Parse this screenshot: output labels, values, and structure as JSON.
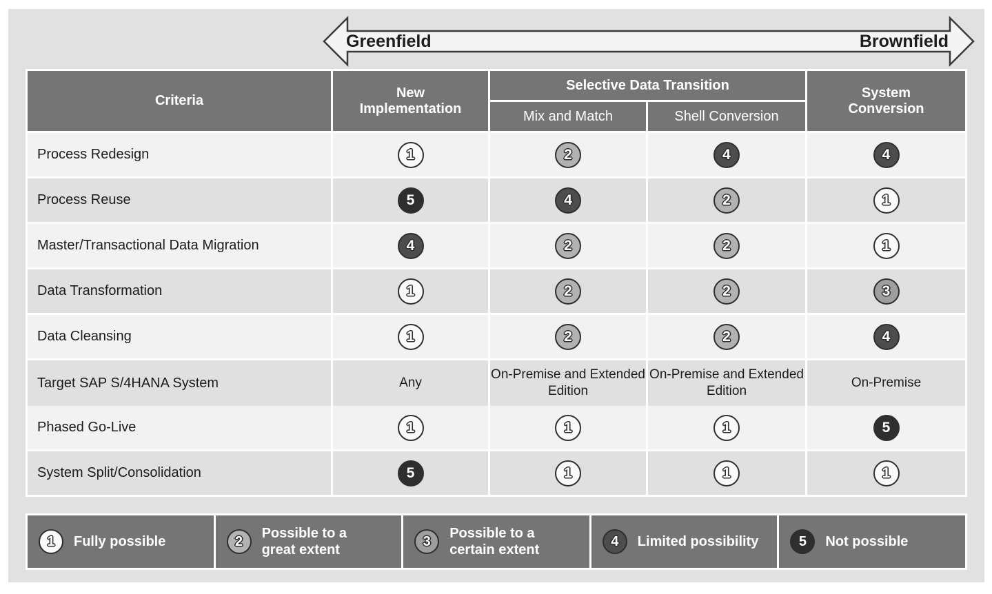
{
  "arrow": {
    "left_label": "Greenfield",
    "right_label": "Brownfield"
  },
  "header": {
    "criteria": "Criteria",
    "new_implementation": "New Implementation",
    "selective_group": "Selective Data Transition",
    "mix_and_match": "Mix and Match",
    "shell_conversion": "Shell Conversion",
    "system_conversion": "System Conversion"
  },
  "rows": [
    {
      "criteria": "Process Redesign",
      "cells": [
        {
          "circle": 1
        },
        {
          "circle": 2
        },
        {
          "circle": 4
        },
        {
          "circle": 4
        }
      ]
    },
    {
      "criteria": "Process Reuse",
      "cells": [
        {
          "circle": 5
        },
        {
          "circle": 4
        },
        {
          "circle": 2
        },
        {
          "circle": 1
        }
      ]
    },
    {
      "criteria": "Master/Transactional Data Migration",
      "cells": [
        {
          "circle": 4
        },
        {
          "circle": 2
        },
        {
          "circle": 2
        },
        {
          "circle": 1
        }
      ]
    },
    {
      "criteria": "Data Transformation",
      "cells": [
        {
          "circle": 1
        },
        {
          "circle": 2
        },
        {
          "circle": 2
        },
        {
          "circle": 3
        }
      ]
    },
    {
      "criteria": "Data Cleansing",
      "cells": [
        {
          "circle": 1
        },
        {
          "circle": 2
        },
        {
          "circle": 2
        },
        {
          "circle": 4
        }
      ]
    },
    {
      "criteria": "Target SAP S/4HANA System",
      "cells": [
        {
          "text": "Any"
        },
        {
          "text": "On-Premise and Extended Edition"
        },
        {
          "text": "On-Premise and Extended Edition"
        },
        {
          "text": "On-Premise"
        }
      ]
    },
    {
      "criteria": "Phased Go-Live",
      "cells": [
        {
          "circle": 1
        },
        {
          "circle": 1
        },
        {
          "circle": 1
        },
        {
          "circle": 5
        }
      ]
    },
    {
      "criteria": "System Split/Consolidation",
      "cells": [
        {
          "circle": 5
        },
        {
          "circle": 1
        },
        {
          "circle": 1
        },
        {
          "circle": 1
        }
      ]
    }
  ],
  "legend": [
    {
      "level": 1,
      "label": "Fully possible"
    },
    {
      "level": 2,
      "label": "Possible to a\ngreat extent"
    },
    {
      "level": 3,
      "label": "Possible to a\ncertain extent"
    },
    {
      "level": 4,
      "label": "Limited possibility"
    },
    {
      "level": 5,
      "label": "Not possible"
    }
  ],
  "colors": {
    "header_bg": "#757575",
    "legend_bg": "#757575",
    "row_light": "#f2f2f2",
    "row_dark": "#e0e0e0",
    "level1": "#fafafa",
    "level2": "#b2b2b2",
    "level3": "#9e9e9e",
    "level4": "#4d4d4d",
    "level5": "#2e2e2e",
    "arrow_fill": "#f4f4f4",
    "arrow_stroke": "#3a3a3a"
  }
}
